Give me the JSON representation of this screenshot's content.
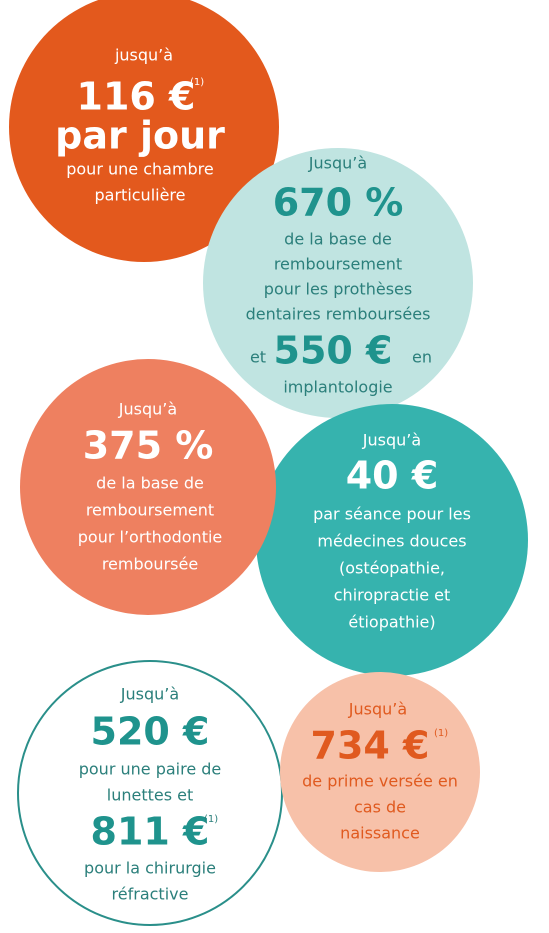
{
  "circles": [
    {
      "intro": "jusqu’à",
      "amount": "116 €",
      "note": "(1)",
      "unit": "par jour",
      "details": [
        "pour une chambre",
        "particulière"
      ]
    },
    {
      "intro": "Jusqu’à",
      "amount": "670 %",
      "details": [
        "de la base de",
        "remboursement",
        "pour les prothèses",
        "dentaires remboursées"
      ],
      "extra_prefix": "et",
      "extra_amount": "550 €",
      "extra_suffix": "en",
      "extra_details": [
        "implantologie"
      ]
    },
    {
      "intro": "Jusqu’à",
      "amount": "375 %",
      "details": [
        "de la base de",
        "remboursement",
        "pour l’orthodontie",
        "remboursée"
      ]
    },
    {
      "intro": "Jusqu’à",
      "amount": "40 €",
      "details": [
        "par séance pour les",
        "médecines douces",
        "(ostéopathie,",
        "chiropractie et",
        "étiopathie)"
      ]
    },
    {
      "intro": "Jusqu’à",
      "amount": "520 €",
      "details": [
        "pour une paire de",
        "lunettes et"
      ],
      "extra_amount": "811 €",
      "extra_note": "(1)",
      "extra_details": [
        "pour la chirurgie",
        "réfractive"
      ]
    },
    {
      "intro": "Jusqu’à",
      "amount": "734 €",
      "note": "(1)",
      "details": [
        "de prime versée en",
        "cas de",
        "naissance"
      ]
    }
  ]
}
